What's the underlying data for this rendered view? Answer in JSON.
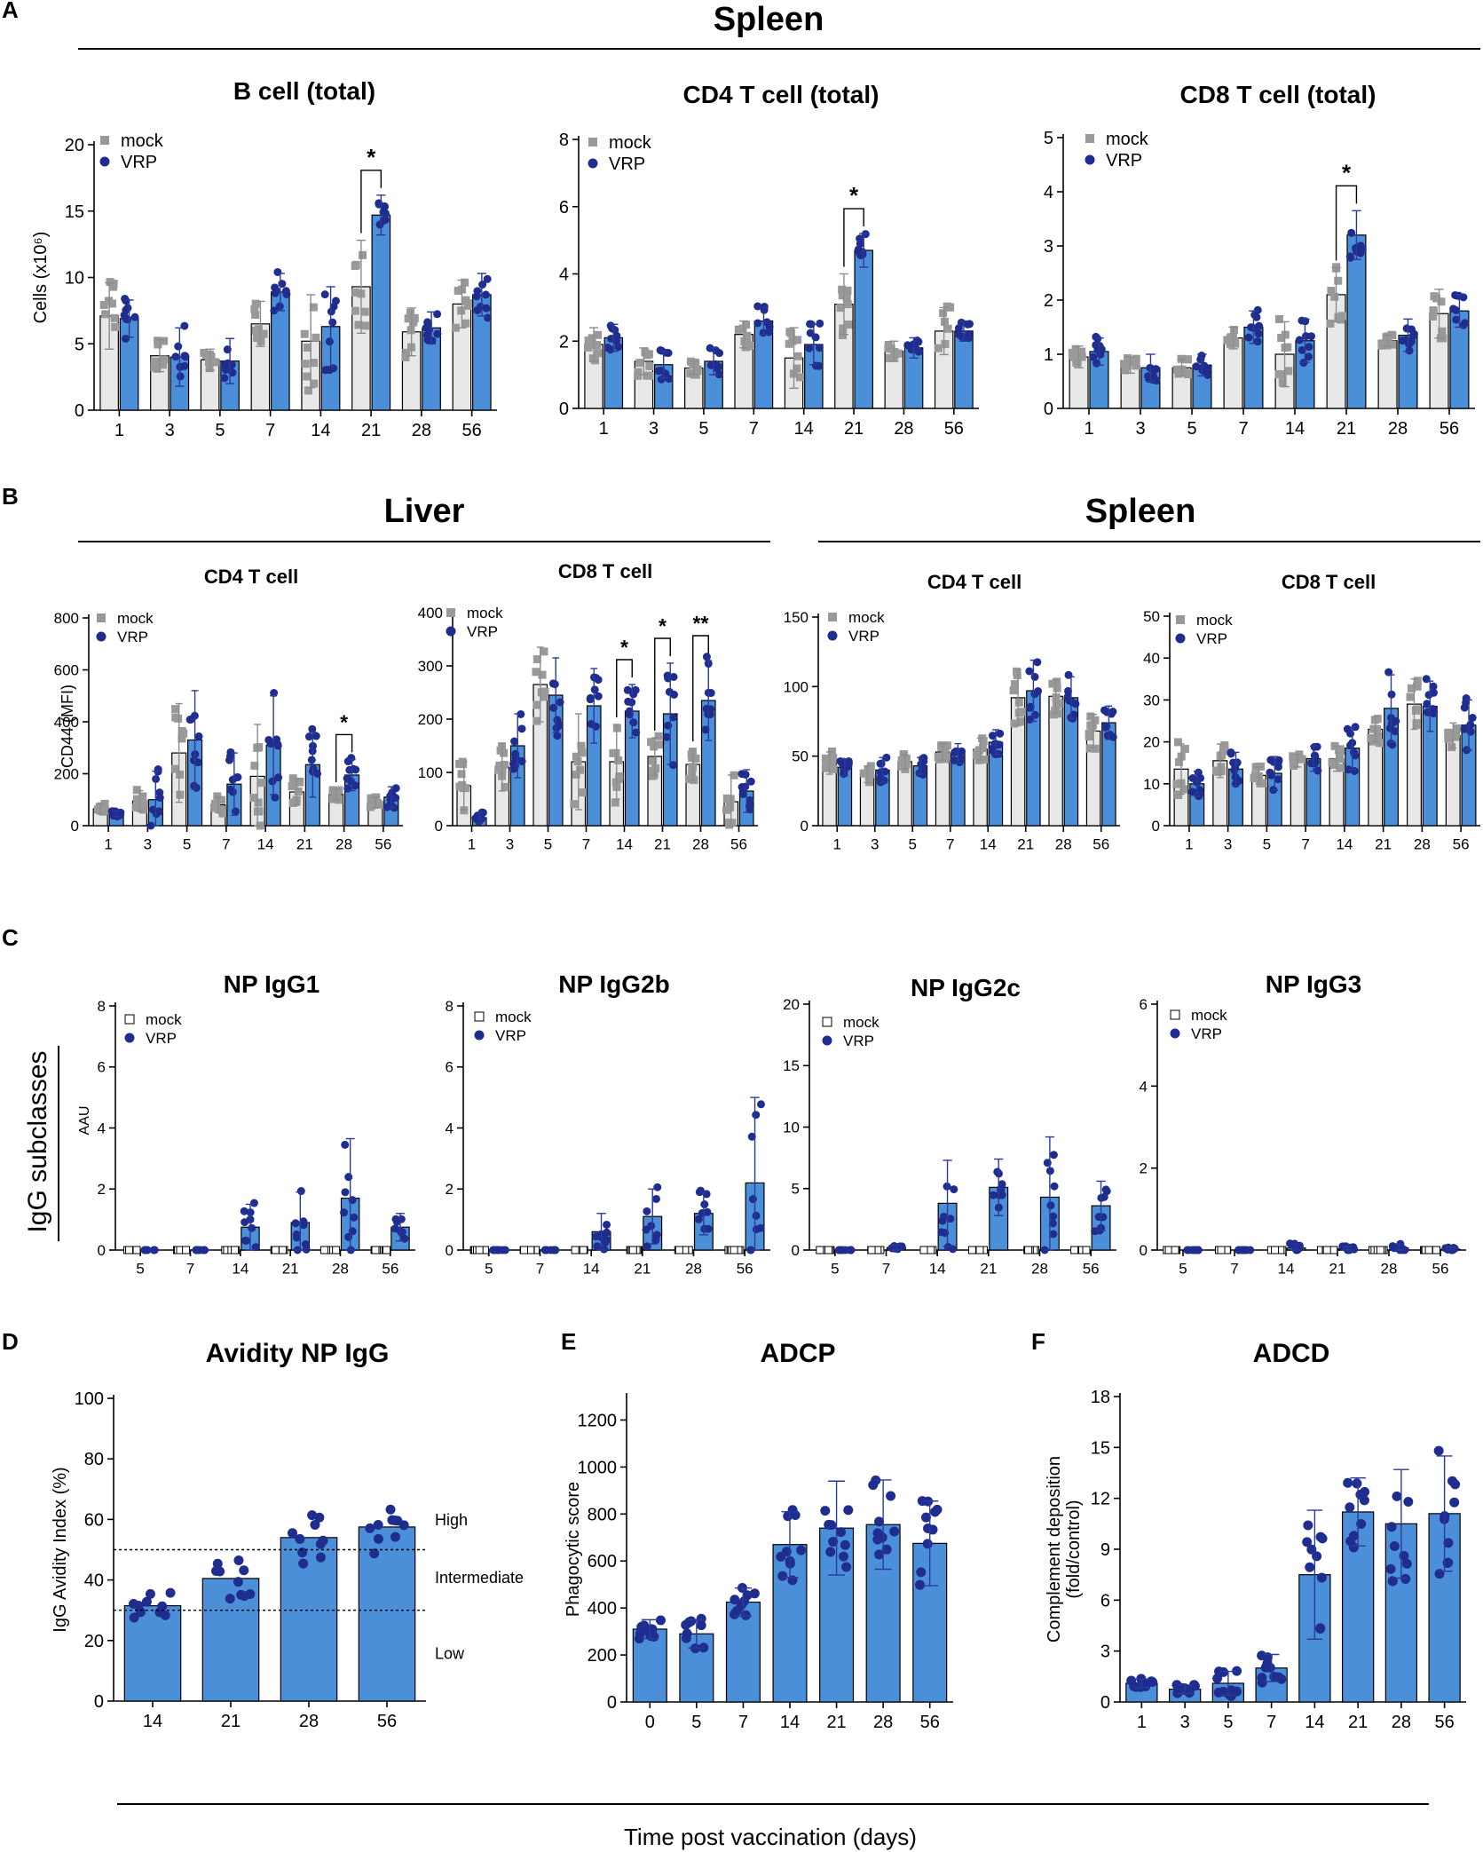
{
  "colors": {
    "mock_fill": "#e8e8e8",
    "mock_dot": "#999999",
    "mock_err": "#8c8c8c",
    "vrp_fill": "#4a8fd8",
    "vrp_dot": "#1f2d8f",
    "vrp_err": "#2a3a9a",
    "axis": "#000000"
  },
  "panels": {
    "A": {
      "letter": "A",
      "header": "Spleen"
    },
    "B": {
      "letter": "B",
      "header_liver": "Liver",
      "header_spleen": "Spleen",
      "ylabel": "CD44 (MFI)"
    },
    "C": {
      "letter": "C",
      "side_label": "IgG subclasses",
      "ylabel": "AAU"
    },
    "D": {
      "letter": "D"
    },
    "E": {
      "letter": "E"
    },
    "F": {
      "letter": "F"
    }
  },
  "footer": {
    "xlabel": "Time post vaccination (days)"
  },
  "chart_data": [
    {
      "id": "A1",
      "type": "bar",
      "title": "B cell (total)",
      "ylabel": "Cells (x10⁶)",
      "ylim": [
        0,
        20
      ],
      "yticks": [
        0,
        5,
        10,
        15,
        20
      ],
      "categories": [
        "1",
        "3",
        "5",
        "7",
        "14",
        "21",
        "28",
        "56"
      ],
      "legend": [
        "mock",
        "VRP"
      ],
      "series": [
        {
          "name": "mock",
          "values": [
            7.1,
            4.1,
            3.8,
            6.5,
            5.2,
            9.3,
            5.9,
            8.0
          ],
          "err": [
            2.5,
            1.2,
            0.8,
            1.7,
            3.5,
            3.5,
            1.8,
            1.8
          ]
        },
        {
          "name": "VRP",
          "values": [
            6.9,
            4.0,
            3.7,
            8.9,
            6.3,
            14.7,
            6.2,
            8.7
          ],
          "err": [
            1.4,
            2.2,
            1.7,
            1.4,
            3.0,
            1.5,
            1.2,
            1.6
          ]
        }
      ],
      "significance": [
        {
          "category": "21",
          "label": "*"
        }
      ]
    },
    {
      "id": "A2",
      "type": "bar",
      "title": "CD4 T cell (total)",
      "ylim": [
        0,
        8
      ],
      "yticks": [
        0,
        2,
        4,
        6,
        8
      ],
      "categories": [
        "1",
        "3",
        "5",
        "7",
        "14",
        "21",
        "28",
        "56"
      ],
      "legend": [
        "mock",
        "VRP"
      ],
      "series": [
        {
          "name": "mock",
          "values": [
            1.9,
            1.4,
            1.2,
            2.2,
            1.5,
            3.1,
            1.7,
            2.3
          ],
          "err": [
            0.5,
            0.4,
            0.2,
            0.4,
            0.9,
            0.9,
            0.3,
            0.7
          ]
        },
        {
          "name": "VRP",
          "values": [
            2.1,
            1.3,
            1.4,
            2.6,
            1.9,
            4.7,
            1.8,
            2.3
          ],
          "err": [
            0.4,
            0.4,
            0.4,
            0.4,
            0.6,
            0.5,
            0.3,
            0.3
          ]
        }
      ],
      "significance": [
        {
          "category": "21",
          "label": "*"
        }
      ]
    },
    {
      "id": "A3",
      "type": "bar",
      "title": "CD8 T cell (total)",
      "ylim": [
        0,
        5
      ],
      "yticks": [
        0,
        1,
        2,
        3,
        4,
        5
      ],
      "categories": [
        "1",
        "3",
        "5",
        "7",
        "14",
        "21",
        "28",
        "56"
      ],
      "legend": [
        "mock",
        "VRP"
      ],
      "series": [
        {
          "name": "mock",
          "values": [
            0.95,
            0.8,
            0.75,
            1.3,
            1.0,
            2.1,
            1.25,
            1.75
          ],
          "err": [
            0.2,
            0.15,
            0.15,
            0.2,
            0.6,
            0.5,
            0.1,
            0.45
          ]
        },
        {
          "name": "VRP",
          "values": [
            1.05,
            0.75,
            0.8,
            1.5,
            1.25,
            3.2,
            1.35,
            1.8
          ],
          "err": [
            0.25,
            0.25,
            0.2,
            0.3,
            0.4,
            0.45,
            0.3,
            0.3
          ]
        }
      ],
      "significance": [
        {
          "category": "21",
          "label": "*"
        }
      ]
    },
    {
      "id": "B1",
      "type": "bar",
      "group": "Liver",
      "title": "CD4 T cell",
      "ylim": [
        0,
        800
      ],
      "yticks": [
        0,
        200,
        400,
        600,
        800
      ],
      "categories": [
        "1",
        "3",
        "5",
        "7",
        "14",
        "21",
        "28",
        "56"
      ],
      "legend": [
        "mock",
        "VRP"
      ],
      "series": [
        {
          "name": "mock",
          "values": [
            65,
            95,
            280,
            80,
            190,
            130,
            120,
            90
          ],
          "err": [
            20,
            40,
            190,
            30,
            200,
            50,
            20,
            20
          ]
        },
        {
          "name": "VRP",
          "values": [
            45,
            100,
            330,
            160,
            310,
            235,
            195,
            110
          ],
          "err": [
            10,
            110,
            190,
            120,
            190,
            125,
            60,
            40
          ]
        }
      ],
      "significance": [
        {
          "category": "28",
          "label": "*"
        }
      ]
    },
    {
      "id": "B2",
      "type": "bar",
      "group": "Liver",
      "title": "CD8 T cell",
      "ylim": [
        0,
        400
      ],
      "yticks": [
        0,
        100,
        200,
        300,
        400
      ],
      "categories": [
        "1",
        "3",
        "5",
        "7",
        "14",
        "21",
        "28",
        "56"
      ],
      "legend": [
        "mock",
        "VRP"
      ],
      "series": [
        {
          "name": "mock",
          "values": [
            75,
            110,
            265,
            120,
            120,
            130,
            115,
            45
          ],
          "err": [
            45,
            45,
            70,
            90,
            70,
            35,
            30,
            50
          ]
        },
        {
          "name": "VRP",
          "values": [
            15,
            150,
            245,
            225,
            215,
            210,
            235,
            65
          ],
          "err": [
            10,
            60,
            70,
            70,
            50,
            95,
            75,
            40
          ]
        }
      ],
      "significance": [
        {
          "category": "14",
          "label": "*"
        },
        {
          "category": "21",
          "label": "*"
        },
        {
          "category": "28",
          "label": "**"
        }
      ]
    },
    {
      "id": "B3",
      "type": "bar",
      "group": "Spleen",
      "title": "CD4 T cell",
      "ylim": [
        0,
        150
      ],
      "yticks": [
        0,
        50,
        100,
        150
      ],
      "categories": [
        "1",
        "3",
        "5",
        "7",
        "14",
        "21",
        "28",
        "56"
      ],
      "legend": [
        "mock",
        "VRP"
      ],
      "series": [
        {
          "name": "mock",
          "values": [
            45,
            37,
            46,
            53,
            55,
            92,
            93,
            68
          ],
          "err": [
            8,
            6,
            5,
            6,
            8,
            20,
            12,
            12
          ]
        },
        {
          "name": "VRP",
          "values": [
            42,
            40,
            43,
            52,
            60,
            97,
            92,
            74
          ],
          "err": [
            6,
            9,
            6,
            7,
            9,
            22,
            15,
            12
          ]
        }
      ],
      "significance": []
    },
    {
      "id": "B4",
      "type": "bar",
      "group": "Spleen",
      "title": "CD8 T cell",
      "ylim": [
        0,
        50
      ],
      "yticks": [
        0,
        10,
        20,
        30,
        40,
        50
      ],
      "categories": [
        "1",
        "3",
        "5",
        "7",
        "14",
        "21",
        "28",
        "56"
      ],
      "legend": [
        "mock",
        "VRP"
      ],
      "series": [
        {
          "name": "mock",
          "values": [
            13.5,
            15.5,
            12,
            15.5,
            16,
            23,
            29,
            21.5
          ],
          "err": [
            6,
            4,
            2,
            1.5,
            3,
            3,
            6,
            3
          ]
        },
        {
          "name": "VRP",
          "values": [
            10,
            13.5,
            12.5,
            16,
            18.5,
            28,
            28.5,
            24
          ],
          "err": [
            3,
            4,
            4,
            3,
            5,
            8,
            6,
            6
          ]
        }
      ],
      "significance": []
    },
    {
      "id": "C1",
      "type": "bar",
      "title": "NP IgG1",
      "ylim": [
        0,
        8
      ],
      "yticks": [
        0,
        2,
        4,
        6,
        8
      ],
      "categories": [
        "5",
        "7",
        "14",
        "21",
        "28",
        "56"
      ],
      "legend": [
        "mock",
        "VRP"
      ],
      "series": [
        {
          "name": "mock",
          "values": [
            0,
            0,
            0,
            0,
            0,
            0
          ]
        },
        {
          "name": "VRP",
          "values": [
            0,
            0,
            0.75,
            0.9,
            1.7,
            0.75
          ],
          "err": [
            0,
            0,
            0.75,
            1.0,
            1.95,
            0.45
          ]
        }
      ]
    },
    {
      "id": "C2",
      "type": "bar",
      "title": "NP IgG2b",
      "ylim": [
        0,
        8
      ],
      "yticks": [
        0,
        2,
        4,
        6,
        8
      ],
      "categories": [
        "5",
        "7",
        "14",
        "21",
        "28",
        "56"
      ],
      "legend": [
        "mock",
        "VRP"
      ],
      "series": [
        {
          "name": "mock",
          "values": [
            0,
            0,
            0,
            0,
            0,
            0
          ]
        },
        {
          "name": "VRP",
          "values": [
            0,
            0,
            0.6,
            1.1,
            1.2,
            2.2
          ],
          "err": [
            0,
            0,
            0.6,
            0.9,
            0.7,
            2.8
          ]
        }
      ]
    },
    {
      "id": "C3",
      "type": "bar",
      "title": "NP IgG2c",
      "ylim": [
        0,
        20
      ],
      "yticks": [
        0,
        5,
        10,
        15,
        20
      ],
      "categories": [
        "5",
        "7",
        "14",
        "21",
        "28",
        "56"
      ],
      "legend": [
        "mock",
        "VRP"
      ],
      "series": [
        {
          "name": "mock",
          "values": [
            0,
            0,
            0,
            0,
            0,
            0
          ]
        },
        {
          "name": "VRP",
          "values": [
            0,
            0.2,
            3.8,
            5.1,
            4.3,
            3.6
          ],
          "err": [
            0,
            0.2,
            3.5,
            2.3,
            4.9,
            2.0
          ]
        }
      ]
    },
    {
      "id": "C4",
      "type": "bar",
      "title": "NP IgG3",
      "ylim": [
        0,
        6
      ],
      "yticks": [
        0,
        2,
        4,
        6
      ],
      "categories": [
        "5",
        "7",
        "14",
        "21",
        "28",
        "56"
      ],
      "legend": [
        "mock",
        "VRP"
      ],
      "series": [
        {
          "name": "mock",
          "values": [
            0,
            0,
            0,
            0,
            0,
            0
          ]
        },
        {
          "name": "VRP",
          "values": [
            0,
            0,
            0.05,
            0.03,
            0.05,
            0.02
          ],
          "err": [
            0,
            0,
            0.1,
            0.06,
            0.1,
            0.05
          ]
        }
      ]
    },
    {
      "id": "D",
      "type": "bar",
      "title": "Avidity NP IgG",
      "ylabel": "IgG Avidity Index (%)",
      "ylim": [
        0,
        100
      ],
      "yticks": [
        0,
        20,
        40,
        60,
        80,
        100
      ],
      "categories": [
        "14",
        "21",
        "28",
        "56"
      ],
      "series": [
        {
          "name": "VRP",
          "values": [
            31.5,
            40.5,
            54,
            57.5
          ]
        }
      ],
      "thresholds": [
        {
          "value": 50
        },
        {
          "value": 30
        }
      ],
      "zones": [
        "High",
        "Intermediate",
        "Low"
      ]
    },
    {
      "id": "E",
      "type": "bar",
      "title": "ADCP",
      "ylabel": "Phagocytic score",
      "ylim": [
        0,
        1300
      ],
      "yticks": [
        0,
        200,
        400,
        600,
        800,
        1000,
        1200
      ],
      "categories": [
        "0",
        "5",
        "7",
        "14",
        "21",
        "28",
        "56"
      ],
      "series": [
        {
          "name": "VRP",
          "values": [
            310,
            290,
            425,
            670,
            740,
            755,
            675
          ],
          "err": [
            40,
            60,
            60,
            140,
            200,
            190,
            180
          ]
        }
      ]
    },
    {
      "id": "F",
      "type": "bar",
      "title": "ADCD",
      "ylabel": "Complement deposition",
      "ylabel2": "(fold/control)",
      "ylim": [
        0,
        18
      ],
      "yticks": [
        0,
        3,
        6,
        9,
        12,
        15,
        18
      ],
      "categories": [
        "1",
        "3",
        "5",
        "7",
        "14",
        "21",
        "28",
        "56"
      ],
      "series": [
        {
          "name": "VRP",
          "values": [
            1.1,
            0.75,
            1.1,
            2.0,
            7.5,
            11.2,
            10.5,
            11.1
          ],
          "err": [
            0.25,
            0.25,
            0.7,
            0.8,
            3.8,
            2.0,
            3.2,
            3.4
          ]
        }
      ]
    }
  ]
}
